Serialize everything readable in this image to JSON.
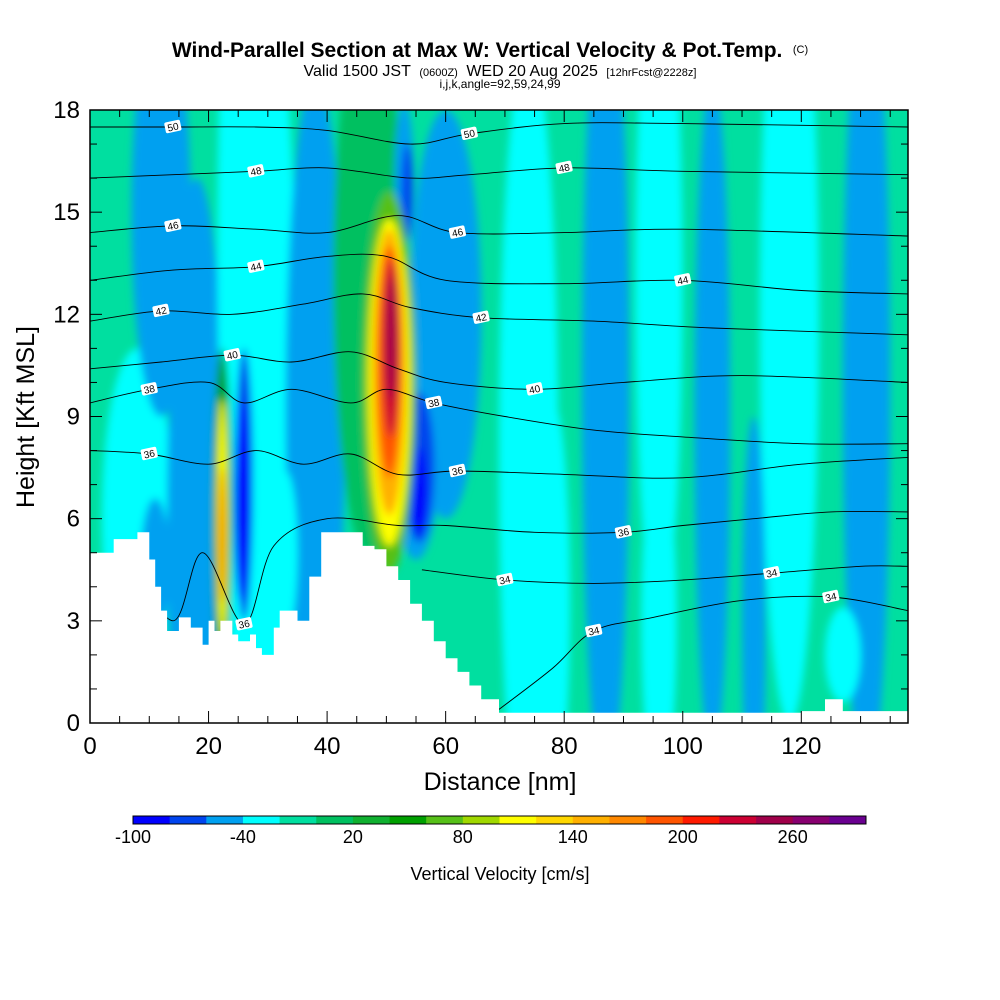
{
  "title": {
    "main": "Wind-Parallel Section at Max W: Vertical Velocity & Pot.Temp.",
    "copyright": "(C)",
    "valid_prefix": "Valid 1500 JST",
    "valid_utc": "(0600Z)",
    "valid_date": "WED 20 Aug 2025",
    "forecast": "[12hrFcst@2228z]",
    "indices": "i,j,k,angle=92,59,24,99"
  },
  "chart_data": {
    "type": "heatmap",
    "xlabel": "Distance [nm]",
    "ylabel": "Height [Kft MSL]",
    "xlim": [
      0,
      138
    ],
    "ylim": [
      0,
      18
    ],
    "x_ticks": [
      0,
      20,
      40,
      60,
      80,
      100,
      120
    ],
    "y_ticks": [
      0,
      3,
      6,
      9,
      12,
      15,
      18
    ],
    "colorbar": {
      "title": "Vertical Velocity [cm/s]",
      "levels": [
        -100,
        -80,
        -60,
        -40,
        -20,
        0,
        20,
        40,
        60,
        80,
        100,
        120,
        140,
        160,
        180,
        200,
        220,
        240,
        260,
        280
      ],
      "tick_labels": [
        "-100",
        "-40",
        "20",
        "80",
        "140",
        "200",
        "260"
      ],
      "tick_values": [
        -100,
        -40,
        20,
        80,
        140,
        200,
        260
      ],
      "colors": [
        "#0000ff",
        "#0044ee",
        "#00a0f0",
        "#00ffff",
        "#00dfa0",
        "#00c060",
        "#10b030",
        "#00a000",
        "#56c018",
        "#a0d800",
        "#ffff00",
        "#ffd700",
        "#ffb000",
        "#ff8800",
        "#ff5500",
        "#ff1a00",
        "#cc0033",
        "#a0004a",
        "#880070",
        "#6a0090"
      ]
    },
    "terrain_kft": [
      [
        0,
        5
      ],
      [
        4,
        5.4
      ],
      [
        8,
        5.6
      ],
      [
        10,
        4.8
      ],
      [
        11,
        4
      ],
      [
        12,
        3.3
      ],
      [
        13,
        2.7
      ],
      [
        15,
        3.1
      ],
      [
        17,
        2.8
      ],
      [
        19,
        2.3
      ],
      [
        20,
        3
      ],
      [
        21,
        2.7
      ],
      [
        22,
        3
      ],
      [
        24,
        2.6
      ],
      [
        25,
        2.4
      ],
      [
        27,
        2.6
      ],
      [
        28,
        2.2
      ],
      [
        29,
        2
      ],
      [
        31,
        2.8
      ],
      [
        32,
        3.3
      ],
      [
        35,
        3
      ],
      [
        37,
        4.3
      ],
      [
        39,
        5.6
      ],
      [
        44,
        5.6
      ],
      [
        46,
        5.2
      ],
      [
        48,
        5.1
      ],
      [
        50,
        4.6
      ],
      [
        52,
        4.2
      ],
      [
        54,
        3.5
      ],
      [
        56,
        3
      ],
      [
        58,
        2.4
      ],
      [
        60,
        1.9
      ],
      [
        62,
        1.5
      ],
      [
        64,
        1.1
      ],
      [
        66,
        0.7
      ],
      [
        69,
        0.3
      ],
      [
        72,
        0.3
      ],
      [
        120,
        0.35
      ],
      [
        124,
        0.7
      ],
      [
        127,
        0.35
      ],
      [
        138,
        0.35
      ]
    ],
    "theta_contours": [
      {
        "label": "36",
        "points": [
          [
            0,
            8.0
          ],
          [
            10,
            7.9
          ],
          [
            20,
            7.6
          ],
          [
            28,
            8.0
          ],
          [
            36,
            7.6
          ],
          [
            44,
            7.9
          ],
          [
            52,
            7.3
          ],
          [
            62,
            7.4
          ],
          [
            80,
            7.3
          ],
          [
            100,
            7.2
          ],
          [
            120,
            7.6
          ],
          [
            138,
            7.8
          ]
        ]
      },
      {
        "label": "36",
        "points": [
          [
            6,
            5.0
          ],
          [
            14,
            3.0
          ],
          [
            19,
            5.0
          ],
          [
            26,
            2.9
          ],
          [
            31,
            5.2
          ],
          [
            40,
            6.0
          ],
          [
            52,
            5.8
          ],
          [
            60,
            5.8
          ],
          [
            75,
            5.6
          ],
          [
            90,
            5.6
          ],
          [
            100,
            5.8
          ],
          [
            112,
            6.0
          ],
          [
            125,
            6.2
          ],
          [
            138,
            6.2
          ]
        ]
      },
      {
        "label": "34",
        "points": [
          [
            56,
            4.5
          ],
          [
            70,
            4.2
          ],
          [
            85,
            4.1
          ],
          [
            100,
            4.2
          ],
          [
            115,
            4.4
          ],
          [
            130,
            4.6
          ],
          [
            138,
            4.6
          ]
        ]
      },
      {
        "label": "34",
        "points": [
          [
            69,
            0.4
          ],
          [
            78,
            1.6
          ],
          [
            85,
            2.7
          ],
          [
            95,
            3.1
          ],
          [
            110,
            3.6
          ],
          [
            125,
            3.7
          ],
          [
            138,
            3.3
          ]
        ]
      },
      {
        "label": "38",
        "points": [
          [
            0,
            9.4
          ],
          [
            10,
            9.8
          ],
          [
            20,
            10.0
          ],
          [
            26,
            9.4
          ],
          [
            34,
            9.8
          ],
          [
            44,
            9.4
          ],
          [
            50,
            9.8
          ],
          [
            58,
            9.4
          ],
          [
            70,
            9.0
          ],
          [
            85,
            8.6
          ],
          [
            100,
            8.4
          ],
          [
            120,
            8.2
          ],
          [
            138,
            8.2
          ]
        ]
      },
      {
        "label": "40",
        "points": [
          [
            0,
            10.4
          ],
          [
            12,
            10.6
          ],
          [
            24,
            10.8
          ],
          [
            34,
            10.6
          ],
          [
            44,
            10.9
          ],
          [
            52,
            10.4
          ],
          [
            60,
            10.0
          ],
          [
            75,
            9.8
          ],
          [
            90,
            10.0
          ],
          [
            110,
            10.2
          ],
          [
            138,
            10.0
          ]
        ]
      },
      {
        "label": "42",
        "points": [
          [
            0,
            11.8
          ],
          [
            12,
            12.1
          ],
          [
            24,
            12.0
          ],
          [
            36,
            12.3
          ],
          [
            46,
            12.6
          ],
          [
            54,
            12.2
          ],
          [
            66,
            11.9
          ],
          [
            85,
            11.8
          ],
          [
            105,
            11.6
          ],
          [
            138,
            11.4
          ]
        ]
      },
      {
        "label": "44",
        "points": [
          [
            0,
            13.0
          ],
          [
            14,
            13.3
          ],
          [
            28,
            13.4
          ],
          [
            40,
            13.7
          ],
          [
            50,
            13.7
          ],
          [
            60,
            13.0
          ],
          [
            80,
            12.9
          ],
          [
            100,
            13.0
          ],
          [
            120,
            12.7
          ],
          [
            138,
            12.6
          ]
        ]
      },
      {
        "label": "46",
        "points": [
          [
            0,
            14.4
          ],
          [
            14,
            14.6
          ],
          [
            28,
            14.5
          ],
          [
            40,
            14.4
          ],
          [
            52,
            14.9
          ],
          [
            62,
            14.4
          ],
          [
            80,
            14.4
          ],
          [
            100,
            14.5
          ],
          [
            138,
            14.3
          ]
        ]
      },
      {
        "label": "48",
        "points": [
          [
            0,
            16.0
          ],
          [
            14,
            16.1
          ],
          [
            28,
            16.2
          ],
          [
            40,
            16.3
          ],
          [
            54,
            16.0
          ],
          [
            64,
            16.1
          ],
          [
            80,
            16.3
          ],
          [
            100,
            16.2
          ],
          [
            138,
            16.1
          ]
        ]
      },
      {
        "label": "50",
        "points": [
          [
            0,
            17.5
          ],
          [
            14,
            17.5
          ],
          [
            28,
            17.5
          ],
          [
            40,
            17.4
          ],
          [
            54,
            17.0
          ],
          [
            64,
            17.3
          ],
          [
            80,
            17.6
          ],
          [
            100,
            17.6
          ],
          [
            138,
            17.5
          ]
        ]
      }
    ]
  }
}
